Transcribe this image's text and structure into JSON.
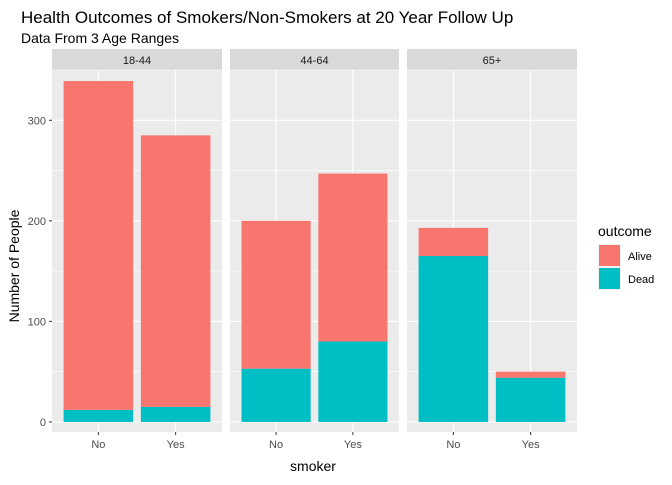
{
  "chart_data": {
    "type": "bar",
    "stacked": true,
    "faceted": true,
    "title": "Health Outcomes of Smokers/Non-Smokers at 20 Year Follow Up",
    "subtitle": "Data From 3 Age Ranges",
    "xlabel": "smoker",
    "ylabel": "Number of People",
    "ylim": [
      -10,
      350
    ],
    "yticks": [
      0,
      100,
      200,
      300
    ],
    "categories": [
      "No",
      "Yes"
    ],
    "grid": true,
    "legend": {
      "title": "outcome",
      "placement": "right",
      "entries": [
        {
          "name": "Alive",
          "color": "#F8766D"
        },
        {
          "name": "Dead",
          "color": "#00BFC4"
        }
      ]
    },
    "facets": [
      {
        "label": "18-44",
        "series": [
          {
            "name": "Alive",
            "values": [
              327,
              270
            ]
          },
          {
            "name": "Dead",
            "values": [
              12,
              15
            ]
          }
        ]
      },
      {
        "label": "44-64",
        "series": [
          {
            "name": "Alive",
            "values": [
              147,
              167
            ]
          },
          {
            "name": "Dead",
            "values": [
              53,
              80
            ]
          }
        ]
      },
      {
        "label": "65+",
        "series": [
          {
            "name": "Alive",
            "values": [
              28,
              6
            ]
          },
          {
            "name": "Dead",
            "values": [
              165,
              44
            ]
          }
        ]
      }
    ]
  }
}
